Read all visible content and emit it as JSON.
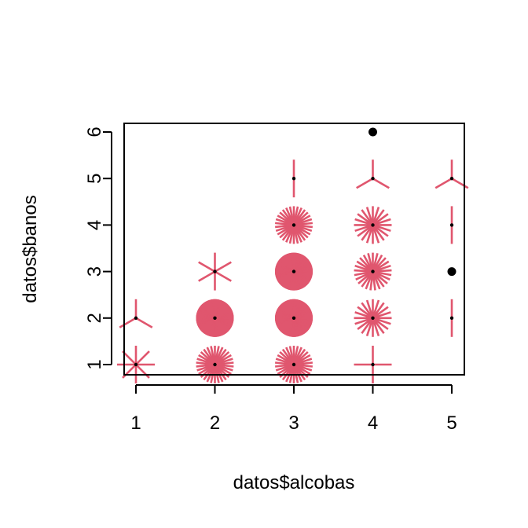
{
  "chart_data": {
    "type": "scatter",
    "subtype": "sunflower",
    "title": "",
    "xlabel": "datos$alcobas",
    "ylabel": "datos$banos",
    "xlim": [
      1,
      5
    ],
    "ylim": [
      1,
      6
    ],
    "x_ticks": [
      "1",
      "2",
      "3",
      "4",
      "5"
    ],
    "y_ticks": [
      "1",
      "2",
      "3",
      "4",
      "5",
      "6"
    ],
    "grid": false,
    "legend": "none",
    "petal_color": "#E0566E",
    "center_color": "#000000",
    "points": [
      {
        "x": 1,
        "y": 1,
        "count": 8
      },
      {
        "x": 1,
        "y": 2,
        "count": 3
      },
      {
        "x": 2,
        "y": 1,
        "count": 30
      },
      {
        "x": 2,
        "y": 2,
        "count": 120
      },
      {
        "x": 2,
        "y": 3,
        "count": 6
      },
      {
        "x": 3,
        "y": 1,
        "count": 30
      },
      {
        "x": 3,
        "y": 2,
        "count": 120
      },
      {
        "x": 3,
        "y": 3,
        "count": 120
      },
      {
        "x": 3,
        "y": 4,
        "count": 30
      },
      {
        "x": 3,
        "y": 5,
        "count": 2
      },
      {
        "x": 4,
        "y": 1,
        "count": 4
      },
      {
        "x": 4,
        "y": 2,
        "count": 20
      },
      {
        "x": 4,
        "y": 3,
        "count": 25
      },
      {
        "x": 4,
        "y": 4,
        "count": 20
      },
      {
        "x": 4,
        "y": 5,
        "count": 3
      },
      {
        "x": 4,
        "y": 6,
        "count": 1
      },
      {
        "x": 5,
        "y": 2,
        "count": 2
      },
      {
        "x": 5,
        "y": 3,
        "count": 1
      },
      {
        "x": 5,
        "y": 4,
        "count": 2
      },
      {
        "x": 5,
        "y": 5,
        "count": 3
      }
    ]
  }
}
